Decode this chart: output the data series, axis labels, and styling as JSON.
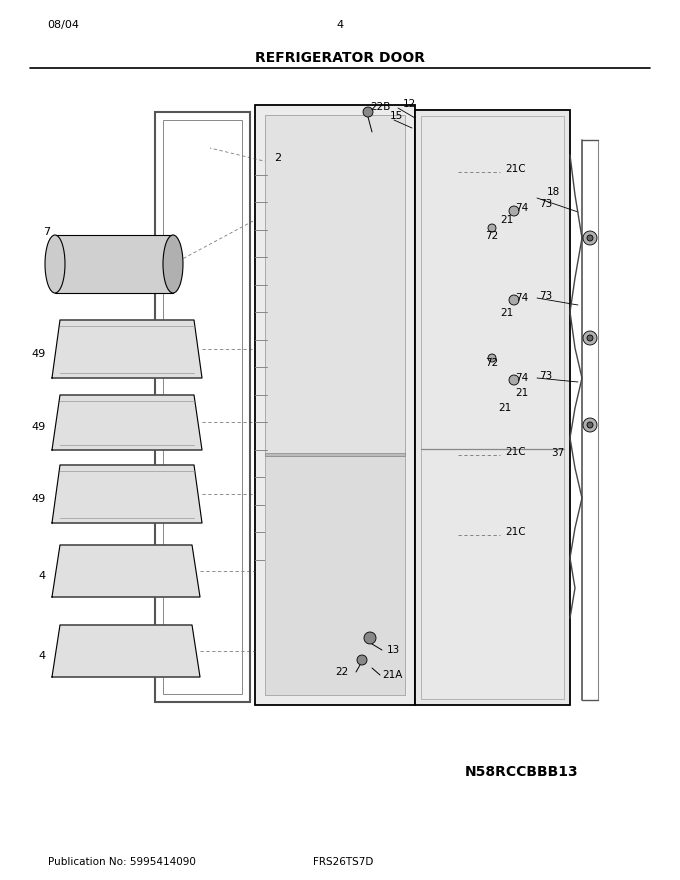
{
  "title": "REFRIGERATOR DOOR",
  "pub_no": "Publication No: 5995414090",
  "model": "FRS26TS7D",
  "part_no": "N58RCCBBB13",
  "date": "08/04",
  "page": "4",
  "bg_color": "#ffffff",
  "lc": "#000000",
  "gray1": "#c8c8c8",
  "gray2": "#e0e0e0",
  "gray3": "#a0a0a0"
}
